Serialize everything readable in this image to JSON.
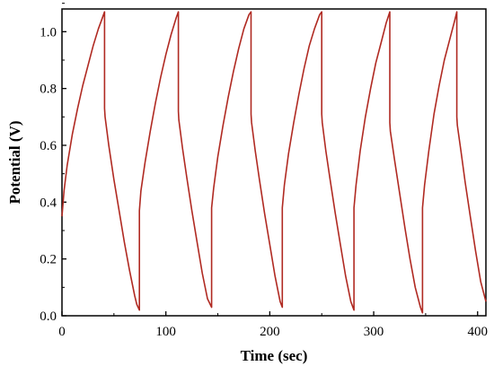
{
  "chart_data": {
    "type": "line",
    "title": "",
    "xlabel": "Time (sec)",
    "ylabel": "Potential (V)",
    "xlim": [
      0,
      408
    ],
    "ylim": [
      0,
      1.08
    ],
    "xticks": [
      0,
      100,
      200,
      300,
      400
    ],
    "xtick_labels": [
      "0",
      "100",
      "200",
      "300",
      "400"
    ],
    "yticks": [
      0.0,
      0.2,
      0.4,
      0.6,
      0.8,
      1.0
    ],
    "ytick_labels": [
      "0.0",
      "0.2",
      "0.4",
      "0.6",
      "0.8",
      "1.0"
    ],
    "grid": false,
    "legend": false,
    "line_color": "#b02a22",
    "series": [
      {
        "x": [
          0,
          2,
          5,
          10,
          15,
          20,
          25,
          30,
          35,
          38,
          41,
          41,
          41.5,
          45,
          50,
          55,
          60,
          65,
          70,
          72,
          74.5,
          74.5,
          76,
          80,
          85,
          90,
          95,
          100,
          105,
          110,
          112,
          112,
          112.5,
          116,
          120,
          125,
          130,
          135,
          140,
          144,
          144,
          146,
          150,
          155,
          160,
          165,
          170,
          175,
          180,
          182,
          182,
          182.5,
          186,
          190,
          195,
          200,
          205,
          210,
          212,
          212,
          214,
          218,
          223,
          228,
          233,
          238,
          243,
          248,
          250,
          250,
          250.5,
          254,
          258,
          263,
          268,
          273,
          278,
          281,
          281,
          283,
          287,
          292,
          297,
          302,
          307,
          312,
          315.5,
          315.5,
          316,
          320,
          325,
          330,
          335,
          340,
          345,
          347,
          347,
          349,
          353,
          358,
          363,
          368,
          373,
          378,
          380,
          380,
          380.5,
          384,
          388,
          393,
          398,
          403,
          408
        ],
        "y": [
          0.35,
          0.44,
          0.53,
          0.64,
          0.73,
          0.81,
          0.88,
          0.95,
          1.01,
          1.04,
          1.07,
          0.73,
          0.7,
          0.6,
          0.48,
          0.37,
          0.26,
          0.16,
          0.07,
          0.04,
          0.02,
          0.37,
          0.44,
          0.54,
          0.65,
          0.75,
          0.84,
          0.92,
          0.99,
          1.05,
          1.07,
          0.72,
          0.69,
          0.59,
          0.49,
          0.37,
          0.26,
          0.15,
          0.06,
          0.03,
          0.38,
          0.45,
          0.56,
          0.67,
          0.77,
          0.86,
          0.94,
          1.01,
          1.06,
          1.07,
          0.71,
          0.68,
          0.58,
          0.48,
          0.36,
          0.25,
          0.14,
          0.05,
          0.03,
          0.38,
          0.46,
          0.57,
          0.68,
          0.78,
          0.87,
          0.95,
          1.01,
          1.06,
          1.07,
          0.71,
          0.68,
          0.58,
          0.48,
          0.36,
          0.25,
          0.14,
          0.05,
          0.02,
          0.38,
          0.46,
          0.58,
          0.7,
          0.8,
          0.89,
          0.96,
          1.03,
          1.07,
          0.68,
          0.65,
          0.55,
          0.43,
          0.31,
          0.2,
          0.1,
          0.03,
          0.01,
          0.38,
          0.46,
          0.58,
          0.71,
          0.81,
          0.9,
          0.97,
          1.04,
          1.07,
          0.7,
          0.67,
          0.58,
          0.47,
          0.35,
          0.23,
          0.12,
          0.05
        ]
      }
    ]
  }
}
